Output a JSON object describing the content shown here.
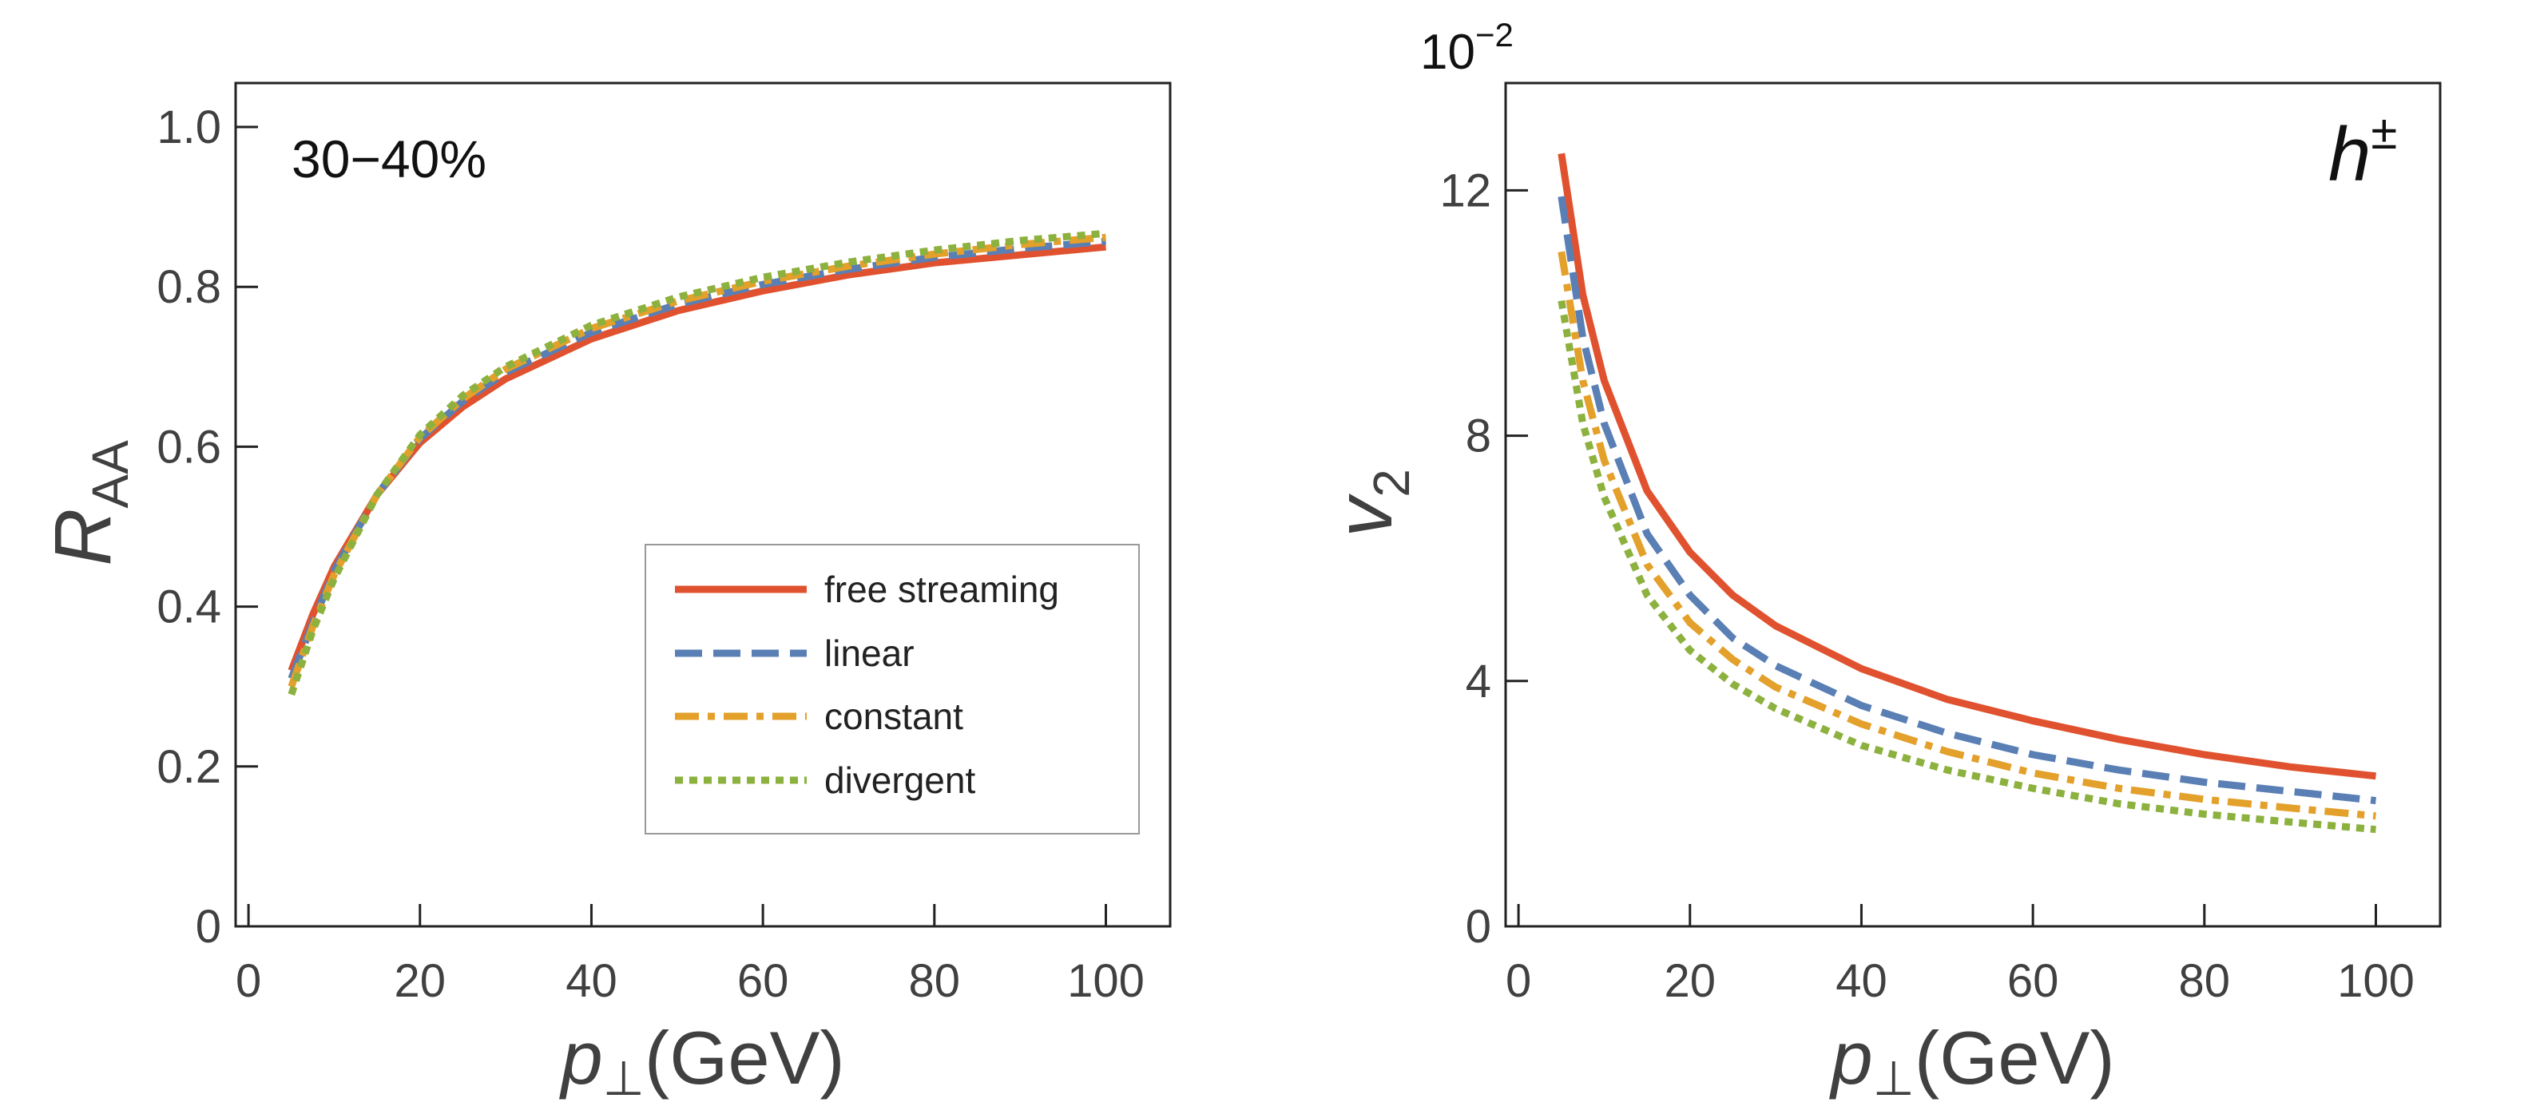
{
  "chart_data": [
    {
      "type": "line",
      "panel": "left",
      "annotation": "30−40%",
      "ylabel": {
        "main": "R",
        "sub": "AA"
      },
      "xlabel": {
        "main": "p",
        "sub": "⊥",
        "unit": "(GeV)"
      },
      "xlim": [
        -1.5,
        107.5
      ],
      "ylim": [
        0,
        1.055
      ],
      "xticks": [
        0,
        20,
        40,
        60,
        80,
        100
      ],
      "xtick_labels": [
        "0",
        "20",
        "40",
        "60",
        "80",
        "100"
      ],
      "yticks": [
        0,
        0.2,
        0.4,
        0.6,
        0.8,
        1.0
      ],
      "ytick_labels": [
        "0",
        "0.2",
        "0.4",
        "0.6",
        "0.8",
        "1.0"
      ],
      "legend_position": "bottom-right",
      "x": [
        5,
        7.5,
        10,
        15,
        20,
        25,
        30,
        40,
        50,
        60,
        70,
        80,
        90,
        100
      ],
      "series": [
        {
          "name": "free streaming",
          "color": "#E0522F",
          "dash": "solid",
          "values": [
            0.32,
            0.39,
            0.45,
            0.54,
            0.605,
            0.65,
            0.685,
            0.735,
            0.77,
            0.795,
            0.815,
            0.83,
            0.84,
            0.85
          ]
        },
        {
          "name": "linear",
          "color": "#5A7FB4",
          "dash": "dashed",
          "values": [
            0.31,
            0.38,
            0.445,
            0.54,
            0.61,
            0.657,
            0.693,
            0.743,
            0.778,
            0.803,
            0.822,
            0.837,
            0.848,
            0.857
          ]
        },
        {
          "name": "constant",
          "color": "#E3A02A",
          "dash": "dashdot",
          "values": [
            0.3,
            0.375,
            0.44,
            0.54,
            0.612,
            0.66,
            0.697,
            0.748,
            0.782,
            0.807,
            0.826,
            0.841,
            0.853,
            0.862
          ]
        },
        {
          "name": "divergent",
          "color": "#8CB13E",
          "dash": "dotted",
          "values": [
            0.29,
            0.37,
            0.435,
            0.54,
            0.615,
            0.664,
            0.7,
            0.752,
            0.787,
            0.812,
            0.831,
            0.846,
            0.858,
            0.867
          ]
        }
      ]
    },
    {
      "type": "line",
      "panel": "right",
      "annotation": {
        "main": "h",
        "sup": "±"
      },
      "scale_label": {
        "base": "10",
        "exp": "−2"
      },
      "ylabel": {
        "main": "v",
        "sub": "2"
      },
      "xlabel": {
        "main": "p",
        "sub": "⊥",
        "unit": "(GeV)"
      },
      "xlim": [
        -1.5,
        107.5
      ],
      "ylim": [
        0,
        13.75
      ],
      "xticks": [
        0,
        20,
        40,
        60,
        80,
        100
      ],
      "xtick_labels": [
        "0",
        "20",
        "40",
        "60",
        "80",
        "100"
      ],
      "yticks": [
        0,
        4,
        8,
        12
      ],
      "ytick_labels": [
        "0",
        "4",
        "8",
        "12"
      ],
      "x": [
        5,
        7.5,
        10,
        15,
        20,
        25,
        30,
        40,
        50,
        60,
        70,
        80,
        90,
        100
      ],
      "series": [
        {
          "name": "free streaming",
          "color": "#E0522F",
          "dash": "solid",
          "values": [
            12.6,
            10.3,
            8.9,
            7.1,
            6.1,
            5.4,
            4.9,
            4.2,
            3.7,
            3.35,
            3.05,
            2.8,
            2.6,
            2.45
          ]
        },
        {
          "name": "linear",
          "color": "#5A7FB4",
          "dash": "dashed",
          "values": [
            11.9,
            9.6,
            8.2,
            6.4,
            5.4,
            4.7,
            4.25,
            3.6,
            3.15,
            2.8,
            2.55,
            2.35,
            2.2,
            2.05
          ]
        },
        {
          "name": "constant",
          "color": "#E3A02A",
          "dash": "dashdot",
          "values": [
            11.0,
            8.9,
            7.6,
            5.9,
            4.95,
            4.35,
            3.9,
            3.3,
            2.85,
            2.5,
            2.25,
            2.07,
            1.93,
            1.8
          ]
        },
        {
          "name": "divergent",
          "color": "#8CB13E",
          "dash": "dotted",
          "values": [
            10.2,
            8.2,
            7.0,
            5.4,
            4.5,
            3.95,
            3.55,
            2.95,
            2.55,
            2.25,
            2.0,
            1.83,
            1.7,
            1.58
          ]
        }
      ]
    }
  ]
}
